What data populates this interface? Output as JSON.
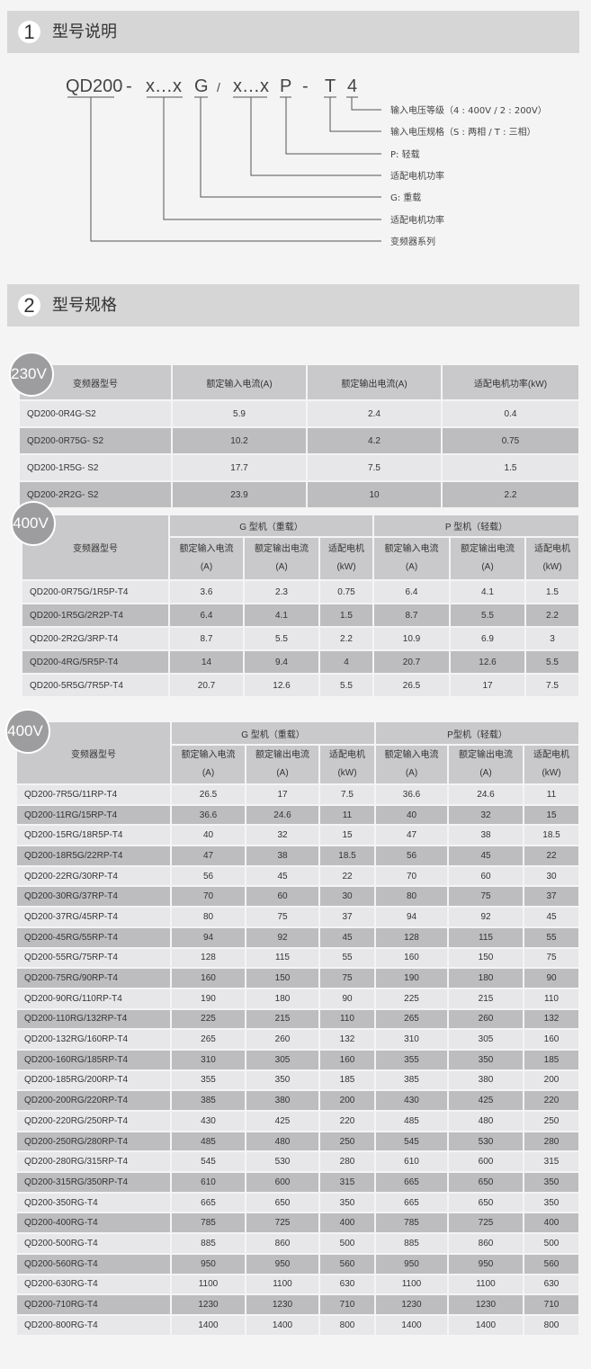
{
  "section1": {
    "number": "1",
    "title": "型号说明"
  },
  "diagram": {
    "code_parts": [
      "QD200",
      "-",
      "x…x",
      "G",
      "/",
      "x…x",
      "P",
      "-",
      "T",
      "4"
    ],
    "labels": [
      "输入电压等级（4 : 400V  /  2 : 200V）",
      "输入电压规格（S : 两相  /  T : 三相）",
      "P: 轻载",
      "适配电机功率",
      "G: 重载",
      "适配电机功率",
      "变频器系列"
    ]
  },
  "section2": {
    "number": "2",
    "title": "型号规格"
  },
  "table230": {
    "badge": "230V",
    "headers": [
      "变频器型号",
      "额定输入电流(A)",
      "额定输出电流(A)",
      "适配电机功率(kW)"
    ],
    "rows": [
      [
        "QD200-0R4G-S2",
        "5.9",
        "2.4",
        "0.4"
      ],
      [
        "QD200-0R75G- S2",
        "10.2",
        "4.2",
        "0.75"
      ],
      [
        "QD200-1R5G- S2",
        "17.7",
        "7.5",
        "1.5"
      ],
      [
        "QD200-2R2G- S2",
        "23.9",
        "10",
        "2.2"
      ]
    ]
  },
  "table400a": {
    "badge": "400V",
    "model_header": "变频器型号",
    "group_g": "G 型机（重载）",
    "group_p": "P 型机（轻载）",
    "sub_headers": [
      [
        "额定输入电流",
        "(A)"
      ],
      [
        "额定输出电流",
        "(A)"
      ],
      [
        "适配电机",
        "(kW)"
      ],
      [
        "额定输入电流",
        "(A)"
      ],
      [
        "额定输出电流",
        "(A)"
      ],
      [
        "适配电机",
        "(kW)"
      ]
    ],
    "rows": [
      [
        "QD200-0R75G/1R5P-T4",
        "3.6",
        "2.3",
        "0.75",
        "6.4",
        "4.1",
        "1.5"
      ],
      [
        "QD200-1R5G/2R2P-T4",
        "6.4",
        "4.1",
        "1.5",
        "8.7",
        "5.5",
        "2.2"
      ],
      [
        "QD200-2R2G/3RP-T4",
        "8.7",
        "5.5",
        "2.2",
        "10.9",
        "6.9",
        "3"
      ],
      [
        "QD200-4RG/5R5P-T4",
        "14",
        "9.4",
        "4",
        "20.7",
        "12.6",
        "5.5"
      ],
      [
        "QD200-5R5G/7R5P-T4",
        "20.7",
        "12.6",
        "5.5",
        "26.5",
        "17",
        "7.5"
      ]
    ]
  },
  "table400b": {
    "badge": "400V",
    "model_header": "变频器型号",
    "group_g": "G 型机（重载）",
    "group_p": "P型机（轻载）",
    "sub_headers": [
      [
        "额定输入电流",
        "(A)"
      ],
      [
        "额定输出电流",
        "(A)"
      ],
      [
        "适配电机",
        "(kW)"
      ],
      [
        "额定输入电流",
        "(A)"
      ],
      [
        "额定输出电流",
        "(A)"
      ],
      [
        "适配电机",
        "(kW)"
      ]
    ],
    "rows": [
      [
        "QD200-7R5G/11RP-T4",
        "26.5",
        "17",
        "7.5",
        "36.6",
        "24.6",
        "11"
      ],
      [
        "QD200-11RG/15RP-T4",
        "36.6",
        "24.6",
        "11",
        "40",
        "32",
        "15"
      ],
      [
        "QD200-15RG/18R5P-T4",
        "40",
        "32",
        "15",
        "47",
        "38",
        "18.5"
      ],
      [
        "QD200-18R5G/22RP-T4",
        "47",
        "38",
        "18.5",
        "56",
        "45",
        "22"
      ],
      [
        "QD200-22RG/30RP-T4",
        "56",
        "45",
        "22",
        "70",
        "60",
        "30"
      ],
      [
        "QD200-30RG/37RP-T4",
        "70",
        "60",
        "30",
        "80",
        "75",
        "37"
      ],
      [
        "QD200-37RG/45RP-T4",
        "80",
        "75",
        "37",
        "94",
        "92",
        "45"
      ],
      [
        "QD200-45RG/55RP-T4",
        "94",
        "92",
        "45",
        "128",
        "115",
        "55"
      ],
      [
        "QD200-55RG/75RP-T4",
        "128",
        "115",
        "55",
        "160",
        "150",
        "75"
      ],
      [
        "QD200-75RG/90RP-T4",
        "160",
        "150",
        "75",
        "190",
        "180",
        "90"
      ],
      [
        "QD200-90RG/110RP-T4",
        "190",
        "180",
        "90",
        "225",
        "215",
        "110"
      ],
      [
        "QD200-110RG/132RP-T4",
        "225",
        "215",
        "110",
        "265",
        "260",
        "132"
      ],
      [
        "QD200-132RG/160RP-T4",
        "265",
        "260",
        "132",
        "310",
        "305",
        "160"
      ],
      [
        "QD200-160RG/185RP-T4",
        "310",
        "305",
        "160",
        "355",
        "350",
        "185"
      ],
      [
        "QD200-185RG/200RP-T4",
        "355",
        "350",
        "185",
        "385",
        "380",
        "200"
      ],
      [
        "QD200-200RG/220RP-T4",
        "385",
        "380",
        "200",
        "430",
        "425",
        "220"
      ],
      [
        "QD200-220RG/250RP-T4",
        "430",
        "425",
        "220",
        "485",
        "480",
        "250"
      ],
      [
        "QD200-250RG/280RP-T4",
        "485",
        "480",
        "250",
        "545",
        "530",
        "280"
      ],
      [
        "QD200-280RG/315RP-T4",
        "545",
        "530",
        "280",
        "610",
        "600",
        "315"
      ],
      [
        "QD200-315RG/350RP-T4",
        "610",
        "600",
        "315",
        "665",
        "650",
        "350"
      ],
      [
        "QD200-350RG-T4",
        "665",
        "650",
        "350",
        "665",
        "650",
        "350"
      ],
      [
        "QD200-400RG-T4",
        "785",
        "725",
        "400",
        "785",
        "725",
        "400"
      ],
      [
        "QD200-500RG-T4",
        "885",
        "860",
        "500",
        "885",
        "860",
        "500"
      ],
      [
        "QD200-560RG-T4",
        "950",
        "950",
        "560",
        "950",
        "950",
        "560"
      ],
      [
        "QD200-630RG-T4",
        "1100",
        "1100",
        "630",
        "1100",
        "1100",
        "630"
      ],
      [
        "QD200-710RG-T4",
        "1230",
        "1230",
        "710",
        "1230",
        "1230",
        "710"
      ],
      [
        "QD200-800RG-T4",
        "1400",
        "1400",
        "800",
        "1400",
        "1400",
        "800"
      ]
    ]
  }
}
